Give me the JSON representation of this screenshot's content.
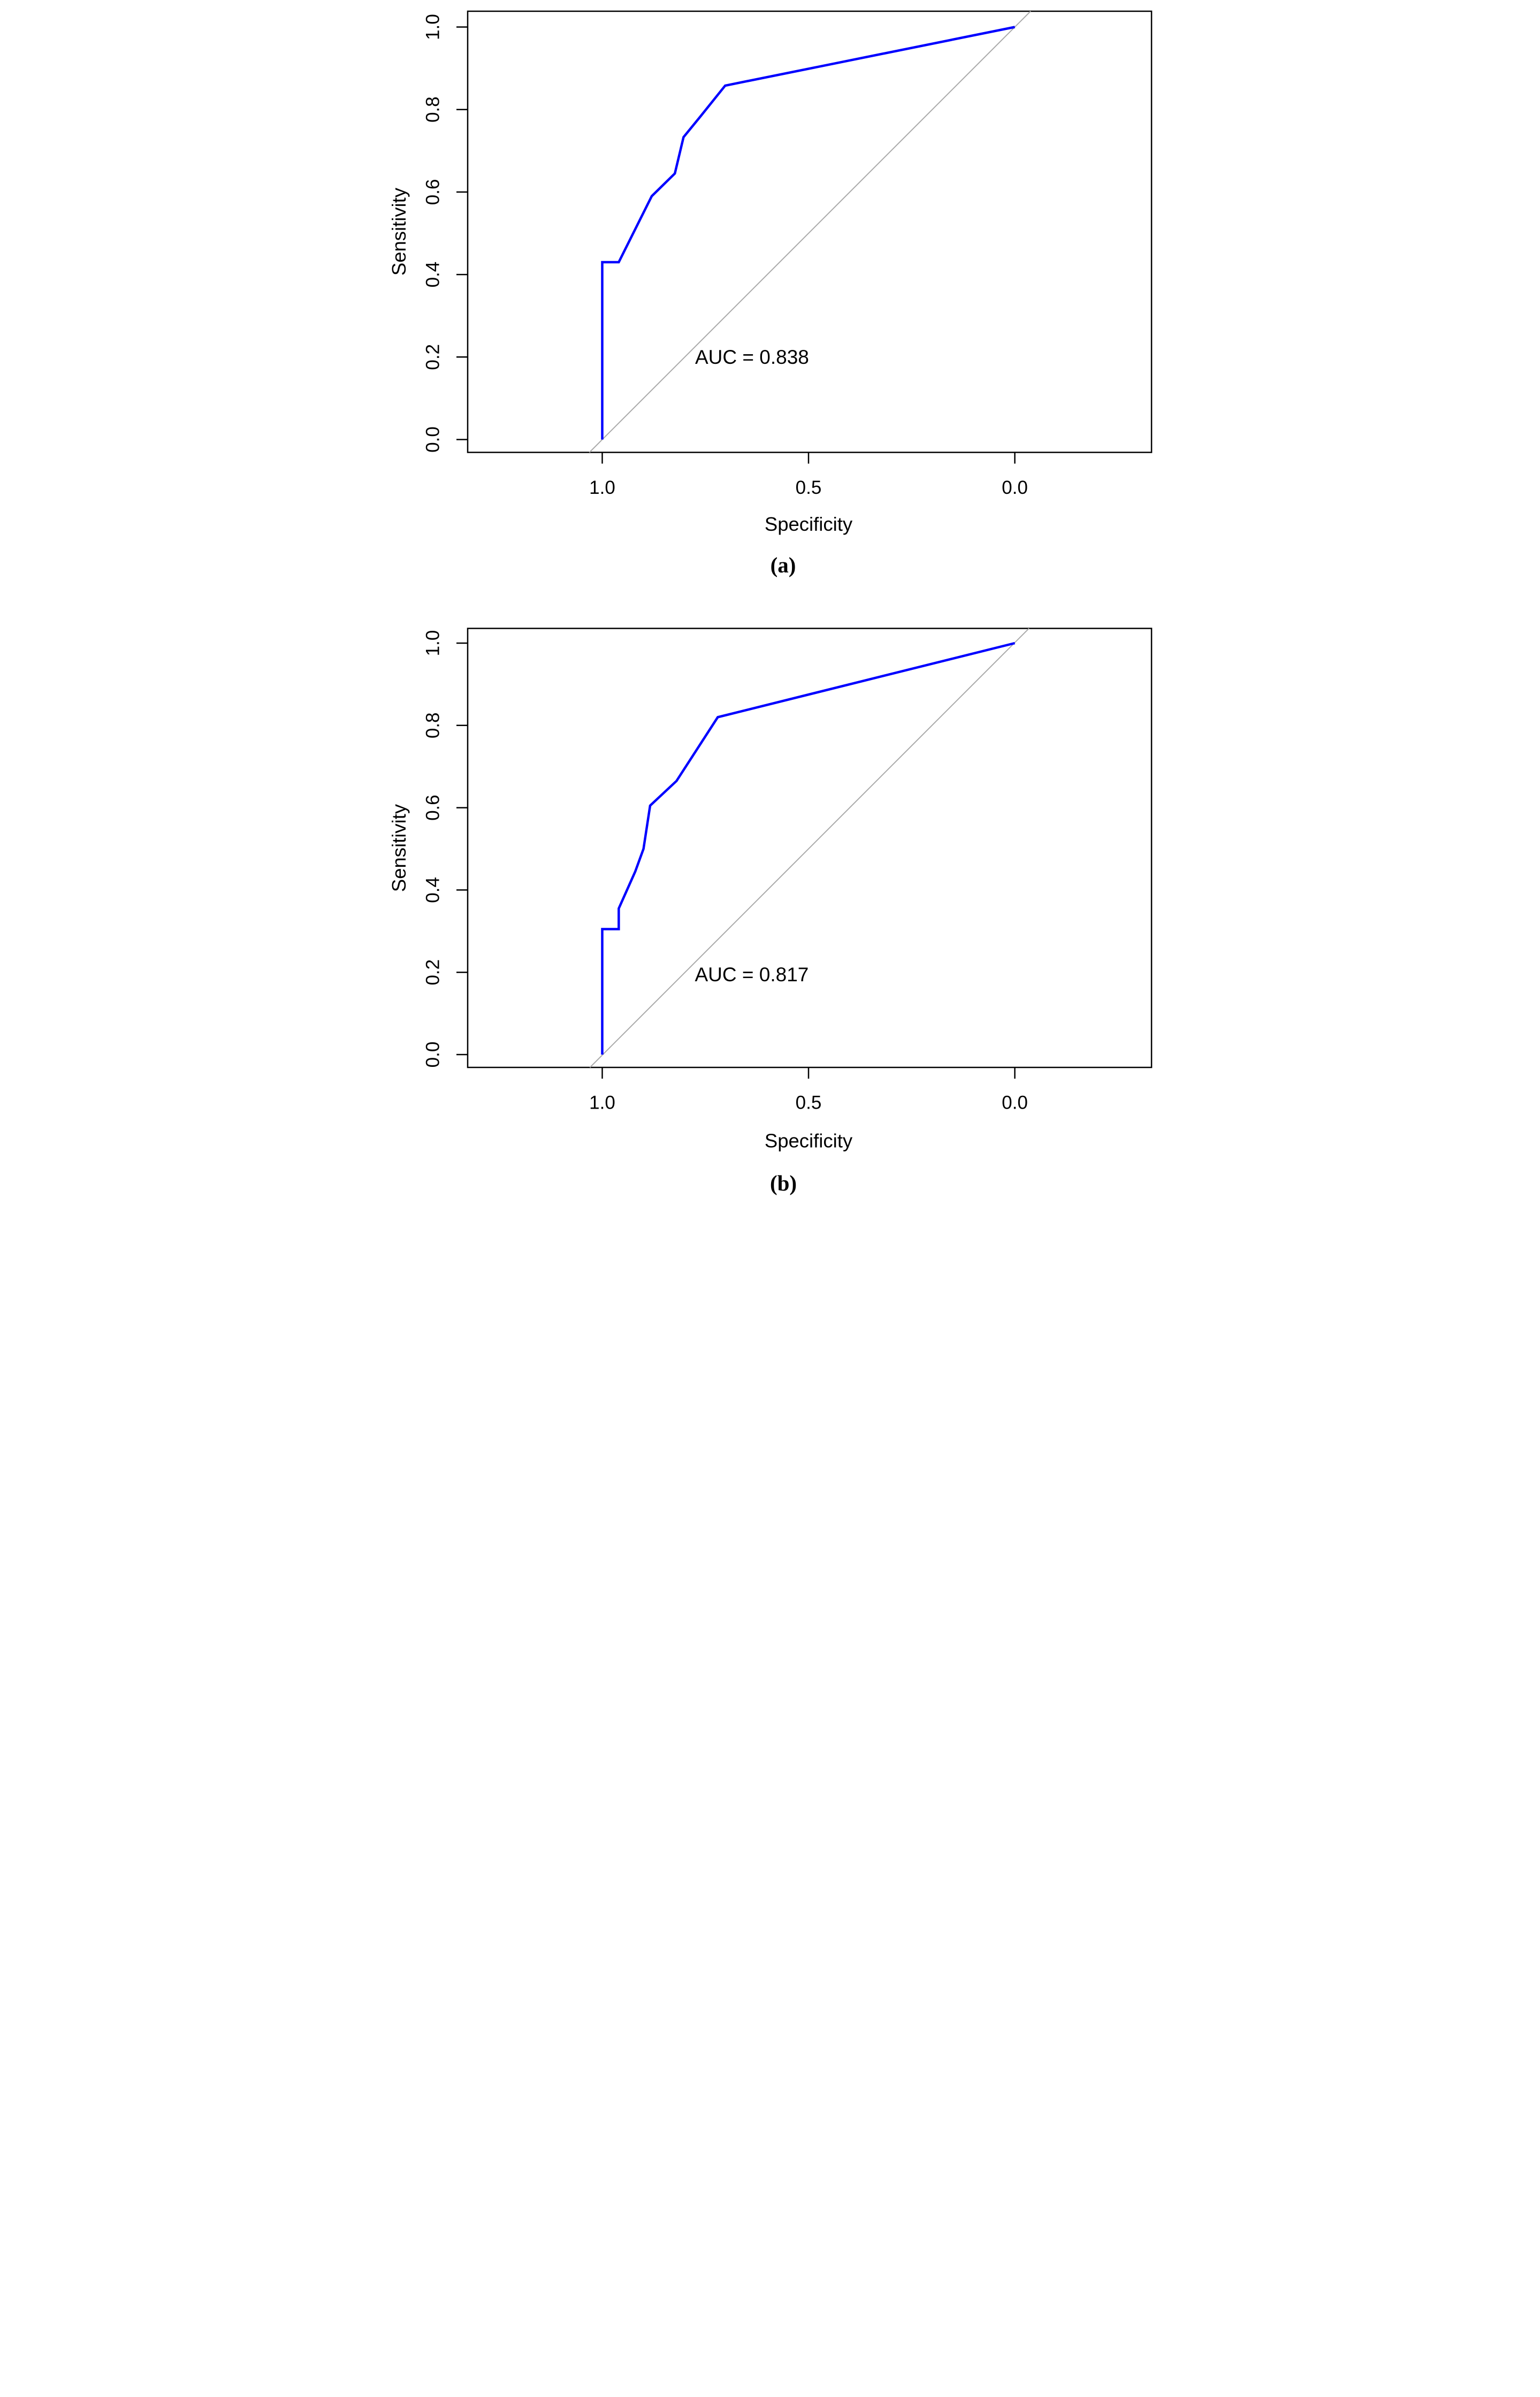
{
  "page": {
    "background": "#FFFFFF"
  },
  "chart_data": [
    {
      "id": "roc-a",
      "type": "line",
      "title": "",
      "caption": "(a)",
      "xlabel": "Specificity",
      "ylabel": "Sensitivity",
      "annotation": "AUC = 0.838",
      "auc": 0.838,
      "x_axis": {
        "label": "Specificity",
        "tick_labels": [
          "1.0",
          "0.5",
          "0.0"
        ],
        "tick_values": [
          1.0,
          0.5,
          0.0
        ],
        "range_shown": [
          1.0,
          0.0
        ],
        "reversed": true,
        "grid": false
      },
      "y_axis": {
        "label": "Sensitivity",
        "tick_labels": [
          "0.0",
          "0.2",
          "0.4",
          "0.6",
          "0.8",
          "1.0"
        ],
        "tick_values": [
          0.0,
          0.2,
          0.4,
          0.6,
          0.8,
          1.0
        ],
        "range_shown": [
          0.0,
          1.0
        ],
        "grid": false
      },
      "series": [
        {
          "name": "ROC curve",
          "color": "#0000FF",
          "points_spec_sens": [
            [
              1.0,
              0.0
            ],
            [
              1.0,
              0.43
            ],
            [
              0.96,
              0.43
            ],
            [
              0.88,
              0.59
            ],
            [
              0.824,
              0.645
            ],
            [
              0.803,
              0.733
            ],
            [
              0.763,
              0.782
            ],
            [
              0.702,
              0.858
            ],
            [
              0.0,
              1.0
            ]
          ]
        }
      ],
      "reference_line": {
        "name": "chance diagonal",
        "color": "#AAAAAA",
        "from_spec_sens": [
          1.0,
          0.0
        ],
        "to_spec_sens": [
          0.0,
          1.0
        ]
      },
      "legend": null
    },
    {
      "id": "roc-b",
      "type": "line",
      "title": "",
      "caption": "(b)",
      "xlabel": "Specificity",
      "ylabel": "Sensitivity",
      "annotation": "AUC = 0.817",
      "auc": 0.817,
      "x_axis": {
        "label": "Specificity",
        "tick_labels": [
          "1.0",
          "0.5",
          "0.0"
        ],
        "tick_values": [
          1.0,
          0.5,
          0.0
        ],
        "range_shown": [
          1.0,
          0.0
        ],
        "reversed": true,
        "grid": false
      },
      "y_axis": {
        "label": "Sensitivity",
        "tick_labels": [
          "0.0",
          "0.2",
          "0.4",
          "0.6",
          "0.8",
          "1.0"
        ],
        "tick_values": [
          0.0,
          0.2,
          0.4,
          0.6,
          0.8,
          1.0
        ],
        "range_shown": [
          0.0,
          1.0
        ],
        "grid": false
      },
      "series": [
        {
          "name": "ROC curve",
          "color": "#0000FF",
          "points_spec_sens": [
            [
              1.0,
              0.0
            ],
            [
              1.0,
              0.305
            ],
            [
              0.96,
              0.305
            ],
            [
              0.96,
              0.355
            ],
            [
              0.92,
              0.445
            ],
            [
              0.9,
              0.5
            ],
            [
              0.884,
              0.605
            ],
            [
              0.82,
              0.665
            ],
            [
              0.72,
              0.82
            ],
            [
              0.0,
              1.0
            ]
          ]
        }
      ],
      "reference_line": {
        "name": "chance diagonal",
        "color": "#AAAAAA",
        "from_spec_sens": [
          1.0,
          0.0
        ],
        "to_spec_sens": [
          0.0,
          1.0
        ]
      },
      "legend": null
    }
  ]
}
